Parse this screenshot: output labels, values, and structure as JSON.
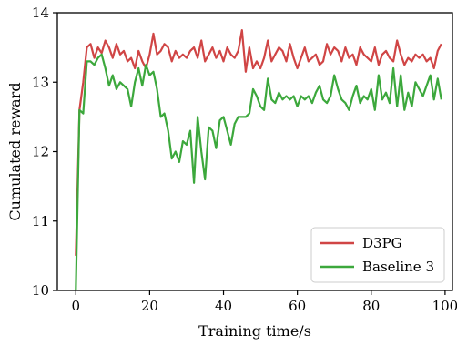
{
  "chart_data": {
    "type": "line",
    "title": "",
    "xlabel": "Training time/s",
    "ylabel": "Cumulated reward",
    "xlim": [
      -5,
      102
    ],
    "ylim": [
      10,
      14
    ],
    "xticks": [
      0,
      20,
      40,
      60,
      80,
      100
    ],
    "yticks": [
      10,
      11,
      12,
      13,
      14
    ],
    "grid": false,
    "legend_position": "bottom-right",
    "x": [
      0,
      1,
      2,
      3,
      4,
      5,
      6,
      7,
      8,
      9,
      10,
      11,
      12,
      13,
      14,
      15,
      16,
      17,
      18,
      19,
      20,
      21,
      22,
      23,
      24,
      25,
      26,
      27,
      28,
      29,
      30,
      31,
      32,
      33,
      34,
      35,
      36,
      37,
      38,
      39,
      40,
      41,
      42,
      43,
      44,
      45,
      46,
      47,
      48,
      49,
      50,
      51,
      52,
      53,
      54,
      55,
      56,
      57,
      58,
      59,
      60,
      61,
      62,
      63,
      64,
      65,
      66,
      67,
      68,
      69,
      70,
      71,
      72,
      73,
      74,
      75,
      76,
      77,
      78,
      79,
      80,
      81,
      82,
      83,
      84,
      85,
      86,
      87,
      88,
      89,
      90,
      91,
      92,
      93,
      94,
      95,
      96,
      97,
      98,
      99
    ],
    "series": [
      {
        "name": "D3PG",
        "color": "#d04545",
        "values": [
          10.5,
          12.6,
          13.0,
          13.5,
          13.55,
          13.35,
          13.5,
          13.42,
          13.6,
          13.5,
          13.35,
          13.55,
          13.4,
          13.45,
          13.3,
          13.35,
          13.2,
          13.45,
          13.3,
          13.2,
          13.4,
          13.7,
          13.4,
          13.45,
          13.55,
          13.5,
          13.3,
          13.45,
          13.35,
          13.4,
          13.35,
          13.45,
          13.5,
          13.35,
          13.6,
          13.3,
          13.4,
          13.5,
          13.35,
          13.45,
          13.3,
          13.5,
          13.4,
          13.35,
          13.45,
          13.75,
          13.15,
          13.5,
          13.2,
          13.3,
          13.2,
          13.35,
          13.6,
          13.3,
          13.4,
          13.5,
          13.45,
          13.3,
          13.55,
          13.35,
          13.2,
          13.35,
          13.5,
          13.3,
          13.35,
          13.4,
          13.25,
          13.3,
          13.55,
          13.4,
          13.5,
          13.45,
          13.3,
          13.5,
          13.35,
          13.4,
          13.25,
          13.5,
          13.4,
          13.35,
          13.3,
          13.5,
          13.25,
          13.4,
          13.45,
          13.35,
          13.3,
          13.6,
          13.4,
          13.25,
          13.35,
          13.3,
          13.4,
          13.35,
          13.4,
          13.3,
          13.35,
          13.2,
          13.45,
          13.55
        ]
      },
      {
        "name": "Baseline 3",
        "color": "#3ca83c",
        "values": [
          10.0,
          12.6,
          12.55,
          13.3,
          13.3,
          13.25,
          13.35,
          13.4,
          13.2,
          12.95,
          13.1,
          12.9,
          13.0,
          12.95,
          12.9,
          12.65,
          13.0,
          13.2,
          12.95,
          13.25,
          13.1,
          13.15,
          12.9,
          12.5,
          12.55,
          12.3,
          11.9,
          12.0,
          11.85,
          12.15,
          12.1,
          12.3,
          11.55,
          12.5,
          12.0,
          11.6,
          12.35,
          12.3,
          12.05,
          12.45,
          12.5,
          12.3,
          12.1,
          12.4,
          12.5,
          12.5,
          12.5,
          12.55,
          12.9,
          12.8,
          12.65,
          12.6,
          13.05,
          12.75,
          12.7,
          12.85,
          12.75,
          12.8,
          12.75,
          12.8,
          12.65,
          12.8,
          12.75,
          12.8,
          12.7,
          12.85,
          12.95,
          12.75,
          12.7,
          12.8,
          13.1,
          12.9,
          12.75,
          12.7,
          12.6,
          12.8,
          12.95,
          12.7,
          12.8,
          12.75,
          12.9,
          12.6,
          13.1,
          12.75,
          12.85,
          12.7,
          13.2,
          12.65,
          13.1,
          12.6,
          12.85,
          12.65,
          13.0,
          12.9,
          12.8,
          12.95,
          13.1,
          12.75,
          13.05,
          12.75
        ]
      }
    ]
  }
}
